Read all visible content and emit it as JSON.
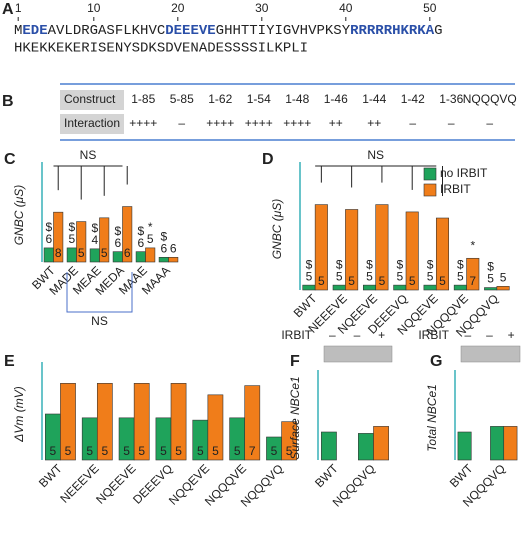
{
  "panel_a": {
    "letter": "A",
    "ruler": [
      1,
      10,
      20,
      30,
      40,
      50
    ],
    "line1": [
      {
        "text": "M",
        "highlight": false
      },
      {
        "text": "EDE",
        "highlight": true
      },
      {
        "text": "AVLDRGASFLKHVC",
        "highlight": false
      },
      {
        "text": "DEEEVE",
        "highlight": true
      },
      {
        "text": "GHHTTIYIGVHVPKSY",
        "highlight": false
      },
      {
        "text": "RRRRRHKRKA",
        "highlight": true
      },
      {
        "text": "G",
        "highlight": false
      }
    ],
    "line2": "HKEKKEKERISENYSDKSDVENADESSSSILKPLI"
  },
  "panel_b": {
    "letter": "B",
    "table": {
      "rows": [
        [
          "Construct",
          "1-85",
          "5-85",
          "1-62",
          "1-54",
          "1-48",
          "1-46",
          "1-44",
          "1-42",
          "1-36",
          "NQQQVQ"
        ],
        [
          "Interaction",
          "++++",
          "–",
          "++++",
          "++++",
          "++++",
          "++",
          "++",
          "–",
          "–",
          "–"
        ]
      ]
    }
  },
  "chart_data": [
    {
      "type": "bar",
      "panel": "C",
      "ylabel": "GNBC (μS)",
      "ylim": [
        0,
        10
      ],
      "categories": [
        "BWT",
        "MADE",
        "MEAE",
        "MEDA",
        "MAAE",
        "MAAA"
      ],
      "series": [
        {
          "color": "#1fa35b",
          "values": [
            1.5,
            1.5,
            1.4,
            1.1,
            1.1,
            0.5
          ],
          "n": [
            6,
            5,
            4,
            6,
            6,
            6
          ],
          "markers": [
            "$",
            "$",
            "$",
            "$",
            "$",
            "$"
          ]
        },
        {
          "color": "#f07d1a",
          "values": [
            5.3,
            4.3,
            4.7,
            5.9,
            1.5,
            0.5
          ],
          "n": [
            8,
            5,
            5,
            6,
            5,
            6
          ],
          "markers": [
            null,
            null,
            null,
            null,
            "*",
            null
          ]
        }
      ],
      "brackets": [
        {
          "label": "NS",
          "categories": [
            0,
            3
          ],
          "position": "top"
        },
        {
          "label": "NS",
          "categories": [
            1,
            3
          ],
          "position": "bottom"
        }
      ]
    },
    {
      "type": "bar",
      "panel": "D",
      "ylabel": "GNBC (μS)",
      "ylim": [
        0,
        10
      ],
      "legend": "top-right",
      "categories": [
        "BWT",
        "NEEEVE",
        "NQEEVE",
        "DEEEVQ",
        "NQQEVE",
        "NQQQVE",
        "NQQQVQ"
      ],
      "series": [
        {
          "name": "no IRBIT",
          "color": "#1fa35b",
          "values": [
            0.4,
            0.4,
            0.4,
            0.4,
            0.4,
            0.4,
            0.2
          ],
          "n": [
            5,
            5,
            5,
            5,
            5,
            5,
            5
          ],
          "markers": [
            "$",
            "$",
            "$",
            "$",
            "$",
            "$",
            "$"
          ]
        },
        {
          "name": "IRBIT",
          "color": "#f07d1a",
          "values": [
            7.0,
            6.6,
            7.0,
            6.4,
            5.9,
            2.6,
            0.3
          ],
          "n": [
            5,
            5,
            5,
            5,
            5,
            7,
            5
          ],
          "markers": [
            null,
            null,
            null,
            null,
            null,
            "*",
            null
          ]
        }
      ],
      "brackets": [
        {
          "label": "NS",
          "categories": [
            0,
            4
          ],
          "position": "top"
        }
      ]
    },
    {
      "type": "bar",
      "panel": "E",
      "ylabel": "ΔVm (mV)",
      "ylim": [
        0,
        12
      ],
      "categories": [
        "BWT",
        "NEEEVE",
        "NQEEVE",
        "DEEEVQ",
        "NQQEVE",
        "NQQQVE",
        "NQQQVQ"
      ],
      "series": [
        {
          "color": "#1fa35b",
          "values": [
            6.0,
            5.5,
            5.5,
            5.5,
            5.2,
            5.5,
            3.0
          ],
          "n": [
            5,
            5,
            5,
            5,
            5,
            5,
            5
          ]
        },
        {
          "color": "#f07d1a",
          "values": [
            10.0,
            10.0,
            10.0,
            10.0,
            8.5,
            9.7,
            5.0
          ],
          "n": [
            5,
            5,
            5,
            5,
            5,
            7,
            5
          ]
        }
      ]
    },
    {
      "type": "bar",
      "panel": "F",
      "ylabel": "Surface NBCe1",
      "ylim": [
        0,
        3
      ],
      "irbit_label": "IRBIT",
      "irbit_states": [
        "–",
        "–",
        "+"
      ],
      "categories": [
        "BWT",
        "NQQQVQ"
      ],
      "series": [
        {
          "color": "#1fa35b",
          "values": [
            1.0,
            0.95
          ]
        },
        {
          "color": "#f07d1a",
          "values": [
            null,
            1.2
          ]
        }
      ]
    },
    {
      "type": "bar",
      "panel": "G",
      "ylabel": "Total NBCe1",
      "ylim": [
        0,
        3
      ],
      "irbit_label": "IRBIT",
      "irbit_states": [
        "–",
        "–",
        "+"
      ],
      "categories": [
        "BWT",
        "NQQQVQ"
      ],
      "series": [
        {
          "color": "#1fa35b",
          "values": [
            1.0,
            1.2
          ]
        },
        {
          "color": "#f07d1a",
          "values": [
            null,
            1.2
          ]
        }
      ]
    }
  ]
}
